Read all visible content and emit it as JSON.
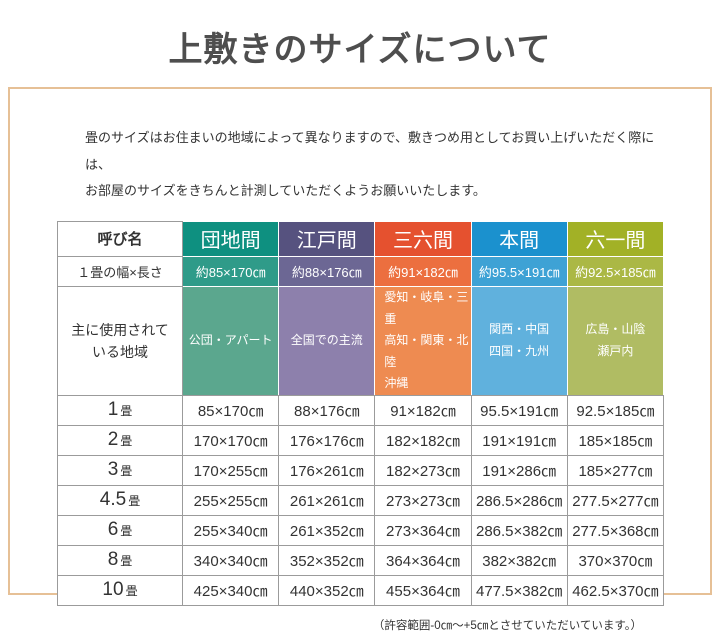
{
  "page": {
    "title": "上敷きのサイズについて",
    "description_line1": "畳のサイズはお住まいの地域によって異なりますので、敷きつめ用としてお買い上げいただく際には、",
    "description_line2": "お部屋のサイズをきちんと計測していただくようお願いいたします。",
    "footnote": "（許容範囲-0㎝～+5㎝とさせていただいています。）"
  },
  "table": {
    "corner_label": "呼び名",
    "size_row_label": "１畳の幅×長さ",
    "region_row_label": "主に使用されて\nいる地域",
    "columns": [
      {
        "name": "団地間",
        "size": "約85×170㎝",
        "region": "公団・アパート"
      },
      {
        "name": "江戸間",
        "size": "約88×176㎝",
        "region": "全国での主流"
      },
      {
        "name": "三六間",
        "size": "約91×182㎝",
        "region": "愛知・岐阜・三重\n高知・関東・北陸\n沖縄"
      },
      {
        "name": "本間",
        "size": "約95.5×191㎝",
        "region": "関西・中国\n四国・九州"
      },
      {
        "name": "六一間",
        "size": "約92.5×185㎝",
        "region": "広島・山陰\n瀬戸内"
      }
    ],
    "rows": [
      {
        "label_num": "1",
        "label_unit": "畳",
        "values": [
          "85×170㎝",
          "88×176㎝",
          "91×182㎝",
          "95.5×191㎝",
          "92.5×185㎝"
        ]
      },
      {
        "label_num": "2",
        "label_unit": "畳",
        "values": [
          "170×170㎝",
          "176×176㎝",
          "182×182㎝",
          "191×191㎝",
          "185×185㎝"
        ]
      },
      {
        "label_num": "3",
        "label_unit": "畳",
        "values": [
          "170×255㎝",
          "176×261㎝",
          "182×273㎝",
          "191×286㎝",
          "185×277㎝"
        ]
      },
      {
        "label_num": "4.5",
        "label_unit": "畳",
        "values": [
          "255×255㎝",
          "261×261㎝",
          "273×273㎝",
          "286.5×286㎝",
          "277.5×277㎝"
        ]
      },
      {
        "label_num": "6",
        "label_unit": "畳",
        "values": [
          "255×340㎝",
          "261×352㎝",
          "273×364㎝",
          "286.5×382㎝",
          "277.5×368㎝"
        ]
      },
      {
        "label_num": "8",
        "label_unit": "畳",
        "values": [
          "340×340㎝",
          "352×352㎝",
          "364×364㎝",
          "382×382㎝",
          "370×370㎝"
        ]
      },
      {
        "label_num": "10",
        "label_unit": "畳",
        "values": [
          "425×340㎝",
          "440×352㎝",
          "455×364㎝",
          "477.5×382㎝",
          "462.5×370㎝"
        ]
      }
    ]
  },
  "colors": {
    "danchi_header": "#0E9080",
    "danchi_size": "#2F9B89",
    "danchi_region": "#5BA78E",
    "edo_header": "#56527F",
    "edo_size": "#6C6794",
    "edo_region": "#8D80AC",
    "sanroku_header": "#E5512F",
    "sanroku_size": "#EC6F3F",
    "sanroku_region": "#EE8B51",
    "hon_header": "#1B91CE",
    "hon_size": "#3EA2D5",
    "hon_region": "#60B1DD",
    "rokuichi_header": "#A2B126",
    "rokuichi_size": "#ABB845",
    "rokuichi_region": "#B0BC63",
    "box_border": "#E6C096"
  }
}
